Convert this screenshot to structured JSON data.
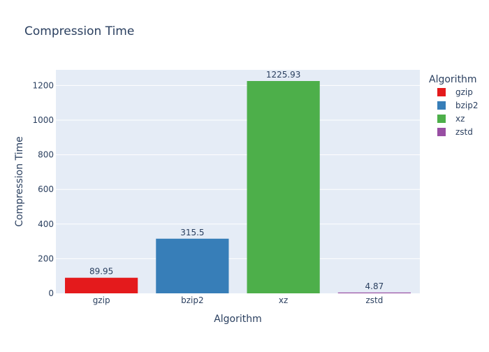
{
  "chart_data": {
    "type": "bar",
    "title": "Compression Time",
    "xlabel": "Algorithm",
    "ylabel": "Compression Time",
    "categories": [
      "gzip",
      "bzip2",
      "xz",
      "zstd"
    ],
    "values": [
      89.95,
      315.5,
      1225.93,
      4.87
    ],
    "value_labels": [
      "89.95",
      "315.5",
      "1225.93",
      "4.87"
    ],
    "colors": [
      "#e41a1c",
      "#377eb8",
      "#4daf4a",
      "#984ea3"
    ],
    "ylim": [
      0,
      1290.45
    ],
    "yticks": [
      0,
      200,
      400,
      600,
      800,
      1000,
      1200
    ],
    "grid": true,
    "legend": {
      "title": "Algorithm",
      "position": "right",
      "items": [
        "gzip",
        "bzip2",
        "xz",
        "zstd"
      ]
    }
  },
  "colors": {
    "plot_background": "#e5ecf6",
    "gridline": "#ffffff",
    "text": "#2a3f5f"
  }
}
